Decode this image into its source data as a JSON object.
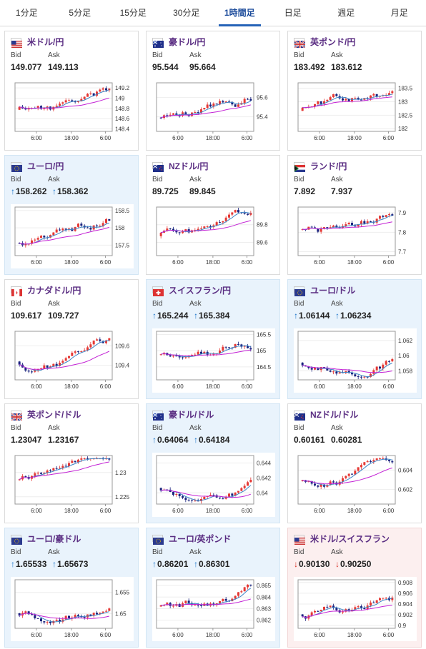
{
  "tabs": [
    "1分足",
    "5分足",
    "15分足",
    "30分足",
    "1時間足",
    "日足",
    "週足",
    "月足"
  ],
  "active_tab": 4,
  "colors": {
    "up": "#e53935",
    "down": "#1a237e",
    "ma1": "#3d85c6",
    "ma2": "#c21fd4",
    "arrow_up": "#1a73c9",
    "arrow_down": "#d93025"
  },
  "labels": {
    "bid": "Bid",
    "ask": "Ask"
  },
  "cards": [
    {
      "name": "米ドル/円",
      "flag": "us",
      "bid": "149.077",
      "ask": "149.113",
      "trend": "",
      "highlight": "",
      "chart_data": {
        "type": "candlestick",
        "x_ticks": [
          "6:00",
          "18:00",
          "6:00"
        ],
        "y_ticks": [
          "149.2",
          "149",
          "148.8",
          "148.6",
          "148.4"
        ],
        "ylim": [
          148.35,
          149.3
        ]
      }
    },
    {
      "name": "豪ドル/円",
      "flag": "au",
      "bid": "95.544",
      "ask": "95.664",
      "trend": "",
      "highlight": "",
      "chart_data": {
        "type": "candlestick",
        "x_ticks": [
          "6:00",
          "18:00",
          "6:00"
        ],
        "y_ticks": [
          "95.6",
          "95.4"
        ],
        "ylim": [
          95.25,
          95.75
        ]
      }
    },
    {
      "name": "英ポンド/円",
      "flag": "gb",
      "bid": "183.492",
      "ask": "183.612",
      "trend": "",
      "highlight": "",
      "chart_data": {
        "type": "candlestick",
        "x_ticks": [
          "6:00",
          "18:00",
          "6:00"
        ],
        "y_ticks": [
          "183.5",
          "183",
          "182.5",
          "182"
        ],
        "ylim": [
          181.9,
          183.7
        ]
      }
    },
    {
      "name": "ユーロ/円",
      "flag": "eu",
      "bid": "158.262",
      "ask": "158.362",
      "trend": "up",
      "highlight": "blue",
      "chart_data": {
        "type": "candlestick",
        "x_ticks": [
          "6:00",
          "18:00",
          "6:00"
        ],
        "y_ticks": [
          "158.5",
          "158",
          "157.5"
        ],
        "ylim": [
          157.2,
          158.6
        ]
      }
    },
    {
      "name": "NZドル/円",
      "flag": "nz",
      "bid": "89.725",
      "ask": "89.845",
      "trend": "",
      "highlight": "",
      "chart_data": {
        "type": "candlestick",
        "x_ticks": [
          "6:00",
          "18:00",
          "6:00"
        ],
        "y_ticks": [
          "89.8",
          "89.6"
        ],
        "ylim": [
          89.45,
          90.0
        ]
      }
    },
    {
      "name": "ランド/円",
      "flag": "za",
      "bid": "7.892",
      "ask": "7.937",
      "trend": "",
      "highlight": "",
      "chart_data": {
        "type": "candlestick",
        "x_ticks": [
          "6:00",
          "18:00",
          "6:00"
        ],
        "y_ticks": [
          "7.9",
          "7.8",
          "7.7"
        ],
        "ylim": [
          7.68,
          7.93
        ]
      }
    },
    {
      "name": "カナダドル/円",
      "flag": "ca",
      "bid": "109.617",
      "ask": "109.727",
      "trend": "",
      "highlight": "",
      "chart_data": {
        "type": "candlestick",
        "x_ticks": [
          "6:00",
          "18:00",
          "6:00"
        ],
        "y_ticks": [
          "109.6",
          "109.4"
        ],
        "ylim": [
          109.25,
          109.75
        ]
      }
    },
    {
      "name": "スイスフラン/円",
      "flag": "ch",
      "bid": "165.244",
      "ask": "165.384",
      "trend": "up",
      "highlight": "blue",
      "chart_data": {
        "type": "candlestick",
        "x_ticks": [
          "6:00",
          "18:00",
          "6:00"
        ],
        "y_ticks": [
          "165.5",
          "165",
          "164.5"
        ],
        "ylim": [
          164.1,
          165.6
        ]
      }
    },
    {
      "name": "ユーロ/ドル",
      "flag": "eu",
      "bid": "1.06144",
      "ask": "1.06234",
      "trend": "up",
      "highlight": "blue",
      "chart_data": {
        "type": "candlestick",
        "x_ticks": [
          "6:00",
          "18:00",
          "6:00"
        ],
        "y_ticks": [
          "1.062",
          "1.06",
          "1.058"
        ],
        "ylim": [
          1.0568,
          1.0632
        ]
      }
    },
    {
      "name": "英ポンド/ドル",
      "flag": "gb",
      "bid": "1.23047",
      "ask": "1.23167",
      "trend": "",
      "highlight": "",
      "chart_data": {
        "type": "candlestick",
        "x_ticks": [
          "6:00",
          "18:00",
          "6:00"
        ],
        "y_ticks": [
          "1.23",
          "1.225"
        ],
        "ylim": [
          1.2235,
          1.2335
        ]
      }
    },
    {
      "name": "豪ドル/ドル",
      "flag": "au",
      "bid": "0.64064",
      "ask": "0.64184",
      "trend": "up",
      "highlight": "blue",
      "chart_data": {
        "type": "candlestick",
        "x_ticks": [
          "6:00",
          "18:00",
          "6:00"
        ],
        "y_ticks": [
          "0.644",
          "0.642",
          "0.64"
        ],
        "ylim": [
          0.6385,
          0.645
        ]
      }
    },
    {
      "name": "NZドル/ドル",
      "flag": "nz",
      "bid": "0.60161",
      "ask": "0.60281",
      "trend": "",
      "highlight": "",
      "chart_data": {
        "type": "candlestick",
        "x_ticks": [
          "6:00",
          "18:00",
          "6:00"
        ],
        "y_ticks": [
          "0.604",
          "0.602"
        ],
        "ylim": [
          0.6005,
          0.6055
        ]
      }
    },
    {
      "name": "ユーロ/豪ドル",
      "flag": "eu",
      "bid": "1.65533",
      "ask": "1.65673",
      "trend": "up",
      "highlight": "blue",
      "chart_data": {
        "type": "candlestick",
        "x_ticks": [
          "6:00",
          "18:00",
          "6:00"
        ],
        "y_ticks": [
          "1.655",
          "1.65"
        ],
        "ylim": [
          1.6465,
          1.658
        ]
      }
    },
    {
      "name": "ユーロ/英ポンド",
      "flag": "eu",
      "bid": "0.86201",
      "ask": "0.86301",
      "trend": "up",
      "highlight": "blue",
      "chart_data": {
        "type": "candlestick",
        "x_ticks": [
          "6:00",
          "18:00",
          "6:00"
        ],
        "y_ticks": [
          "0.865",
          "0.864",
          "0.863",
          "0.862"
        ],
        "ylim": [
          0.8613,
          0.8655
        ]
      }
    },
    {
      "name": "米ドル/スイスフラン",
      "flag": "us",
      "bid": "0.90130",
      "ask": "0.90250",
      "trend": "down",
      "highlight": "red",
      "chart_data": {
        "type": "candlestick",
        "x_ticks": [
          "6:00",
          "18:00",
          "6:00"
        ],
        "y_ticks": [
          "0.908",
          "0.906",
          "0.904",
          "0.902",
          "0.9"
        ],
        "ylim": [
          0.8995,
          0.9085
        ]
      }
    }
  ]
}
